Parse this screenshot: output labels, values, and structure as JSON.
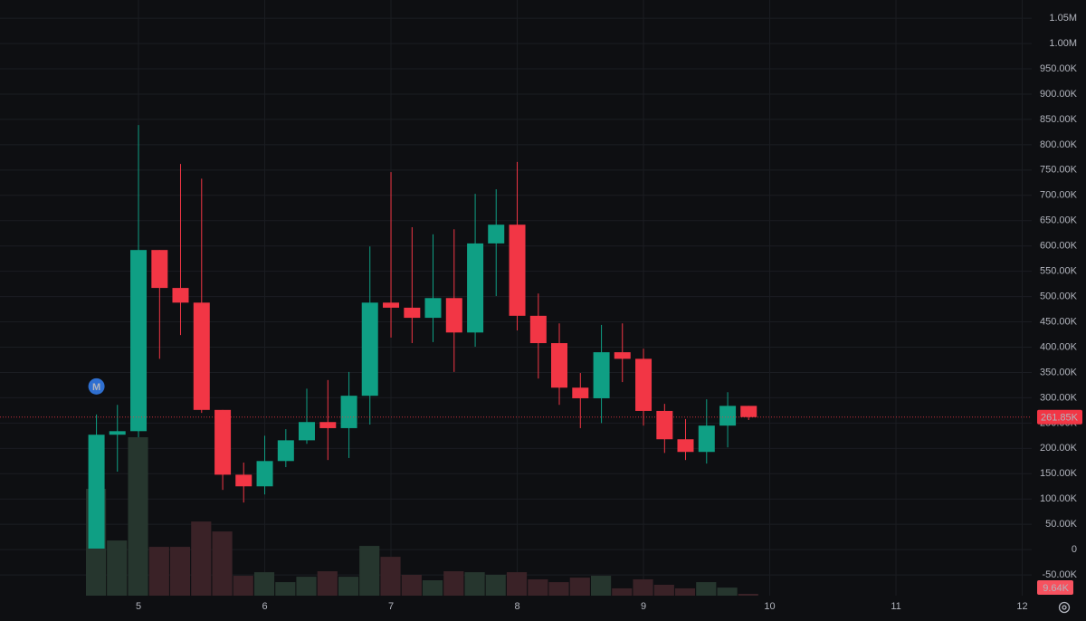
{
  "chart_data": {
    "type": "candlestick",
    "x": [
      4.667,
      4.833,
      5,
      5.167,
      5.333,
      5.5,
      5.667,
      5.833,
      6,
      6.167,
      6.333,
      6.5,
      6.667,
      6.833,
      7,
      7.167,
      7.333,
      7.5,
      7.667,
      7.833,
      8,
      8.167,
      8.333,
      8.5,
      8.667,
      8.833,
      9,
      9.167,
      9.333,
      9.5,
      9.667,
      9.833
    ],
    "open": [
      2000,
      227000,
      234000,
      592000,
      517000,
      488000,
      276000,
      148000,
      125000,
      175000,
      216000,
      252000,
      240000,
      304000,
      488000,
      478000,
      458000,
      497000,
      429000,
      605000,
      642000,
      462000,
      408000,
      320000,
      299000,
      390000,
      377000,
      274000,
      218000,
      193000,
      245000,
      284000
    ],
    "high": [
      267000,
      286000,
      839000,
      592000,
      762000,
      733000,
      276000,
      172000,
      225000,
      238000,
      318000,
      335000,
      351000,
      599000,
      746000,
      637000,
      623000,
      633000,
      703000,
      712000,
      766000,
      506000,
      447000,
      349000,
      444000,
      447000,
      397000,
      288000,
      258000,
      297000,
      311000,
      284000
    ],
    "low": [
      2000,
      154000,
      222000,
      377000,
      424000,
      270000,
      118000,
      93000,
      109000,
      163000,
      209000,
      177000,
      181000,
      247000,
      419000,
      408000,
      410000,
      351000,
      401000,
      501000,
      433000,
      338000,
      286000,
      240000,
      250000,
      331000,
      245000,
      191000,
      177000,
      170000,
      202000,
      256000
    ],
    "close": [
      227000,
      234000,
      592000,
      517000,
      488000,
      276000,
      148000,
      125000,
      175000,
      216000,
      252000,
      240000,
      304000,
      488000,
      478000,
      458000,
      497000,
      429000,
      605000,
      642000,
      462000,
      408000,
      320000,
      299000,
      390000,
      377000,
      274000,
      218000,
      193000,
      245000,
      284000,
      261850
    ],
    "volume": [
      569000,
      294000,
      844000,
      260000,
      260000,
      395000,
      342000,
      106000,
      125000,
      72000,
      101000,
      130000,
      101000,
      265000,
      207000,
      111000,
      82000,
      130000,
      125000,
      111000,
      125000,
      87000,
      72000,
      96000,
      106000,
      39000,
      87000,
      58000,
      39000,
      72000,
      43000,
      9640
    ],
    "up_color": "#0f9f84",
    "down_color": "#f23645",
    "up_volume_color": "#26362e",
    "down_volume_color": "#3a2227",
    "last_price": {
      "value": 261850,
      "label": "261.85K"
    },
    "last_volume": {
      "value": 9640,
      "label": "9.64K"
    },
    "markers": [
      {
        "x": 4.667,
        "label": "M"
      }
    ],
    "xlim": [
      3.903,
      12.075
    ],
    "ylim": [
      -91000,
      1086000
    ],
    "xticks": [
      5,
      6,
      7,
      8,
      9,
      10,
      11,
      12
    ],
    "yticks": [
      {
        "value": -50000,
        "label": "-50.00K"
      },
      0,
      {
        "value": 50000,
        "label": "50.00K"
      },
      {
        "value": 100000,
        "label": "100.00K"
      },
      {
        "value": 150000,
        "label": "150.00K"
      },
      {
        "value": 200000,
        "label": "200.00K"
      },
      {
        "value": 250000,
        "label": "250.00K"
      },
      {
        "value": 300000,
        "label": "300.00K"
      },
      {
        "value": 350000,
        "label": "350.00K"
      },
      {
        "value": 400000,
        "label": "400.00K"
      },
      {
        "value": 450000,
        "label": "450.00K"
      },
      {
        "value": 500000,
        "label": "500.00K"
      },
      {
        "value": 550000,
        "label": "550.00K"
      },
      {
        "value": 600000,
        "label": "600.00K"
      },
      {
        "value": 650000,
        "label": "650.00K"
      },
      {
        "value": 700000,
        "label": "700.00K"
      },
      {
        "value": 750000,
        "label": "750.00K"
      },
      {
        "value": 800000,
        "label": "800.00K"
      },
      {
        "value": 850000,
        "label": "850.00K"
      },
      {
        "value": 900000,
        "label": "900.00K"
      },
      {
        "value": 950000,
        "label": "950.00K"
      },
      {
        "value": 1000000,
        "label": "1.00M"
      },
      {
        "value": 1050000,
        "label": "1.05M"
      }
    ],
    "grid": true
  }
}
